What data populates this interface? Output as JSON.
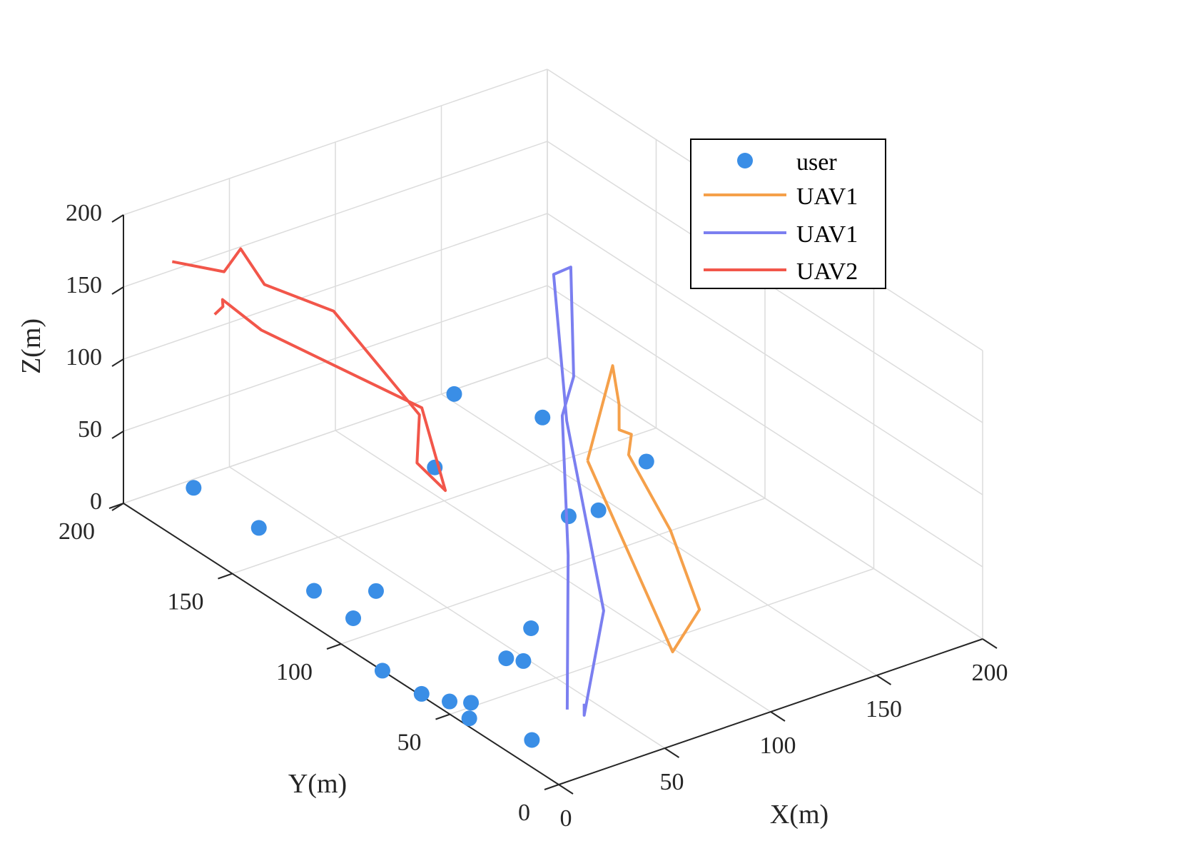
{
  "chart_data": {
    "type": "scatter",
    "projection": "3d",
    "xlabel": "X(m)",
    "ylabel": "Y(m)",
    "zlabel": "Z(m)",
    "xlim": [
      0,
      200
    ],
    "ylim": [
      0,
      200
    ],
    "zlim": [
      0,
      200
    ],
    "xticks": [
      "0",
      "50",
      "100",
      "150",
      "200"
    ],
    "yticks": [
      "0",
      "50",
      "100",
      "150",
      "200"
    ],
    "zticks": [
      "0",
      "50",
      "100",
      "150",
      "200"
    ],
    "grid": true,
    "legend_position": "top-right",
    "series": [
      {
        "name": "user",
        "kind": "markers",
        "color": "#3a8ee6",
        "points": [
          [
            29,
            196,
            0
          ],
          [
            30,
            167,
            0
          ],
          [
            113,
            167,
            0
          ],
          [
            154,
            198,
            0
          ],
          [
            170,
            173,
            0
          ],
          [
            181,
            136,
            0
          ],
          [
            143,
            121,
            0
          ],
          [
            131,
            123,
            0
          ],
          [
            17,
            129,
            0
          ],
          [
            16,
            110,
            0
          ],
          [
            66,
            77,
            0
          ],
          [
            44,
            67,
            0
          ],
          [
            0,
            81,
            0
          ],
          [
            4,
            45,
            0
          ],
          [
            12,
            52,
            0
          ],
          [
            13,
            25,
            0
          ],
          [
            6,
            56,
            0
          ],
          [
            1,
            64,
            0
          ],
          [
            36,
            119,
            0
          ],
          [
            48,
            63,
            0
          ]
        ]
      },
      {
        "name": "UAV1",
        "kind": "line",
        "color": "#f5a04a",
        "points": [
          [
            30,
            16,
            194
          ],
          [
            85,
            58,
            191
          ],
          [
            87,
            57,
            164
          ],
          [
            86,
            56,
            148
          ],
          [
            100,
            64,
            130
          ],
          [
            110,
            75,
            100
          ],
          [
            102,
            48,
            78
          ],
          [
            89,
            22,
            55
          ],
          [
            64,
            10,
            50
          ],
          [
            30,
            16,
            194
          ]
        ]
      },
      {
        "name": "UAV1",
        "kind": "line",
        "color": "#7b7ff0",
        "points": [
          [
            12,
            0,
            50
          ],
          [
            12,
            0,
            42
          ],
          [
            52,
            30,
            65
          ],
          [
            90,
            84,
            125
          ],
          [
            166,
            164,
            110
          ],
          [
            170,
            160,
            117
          ],
          [
            120,
            110,
            115
          ],
          [
            91,
            87,
            125
          ],
          [
            64,
            58,
            70
          ],
          [
            4,
            0,
            50
          ]
        ]
      },
      {
        "name": "UAV2",
        "kind": "line",
        "color": "#f2564a",
        "points": [
          [
            23,
            200,
            156
          ],
          [
            30,
            183,
            162
          ],
          [
            44,
            189,
            165
          ],
          [
            46,
            180,
            148
          ],
          [
            56,
            158,
            146
          ],
          [
            77,
            139,
            82
          ],
          [
            43,
            107,
            97
          ],
          [
            42,
            93,
            92
          ],
          [
            35,
            97,
            149
          ],
          [
            24,
            160,
            147
          ],
          [
            19,
            173,
            158
          ],
          [
            11,
            165,
            165
          ],
          [
            4,
            162,
            166
          ]
        ]
      }
    ]
  }
}
